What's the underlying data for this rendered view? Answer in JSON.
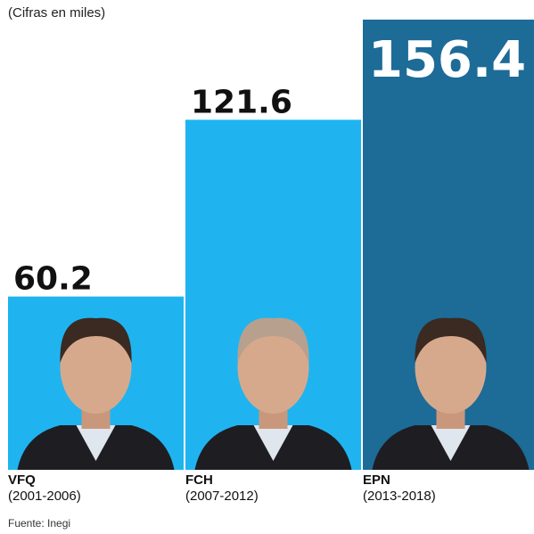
{
  "note": "(Cifras en miles)",
  "source": "Fuente: Inegi",
  "colors": {
    "light_blue": "#1fb4f0",
    "dark_blue": "#1d6b97",
    "value_text_dark": "#111111",
    "value_text_light": "#ffffff"
  },
  "chart_data": {
    "type": "bar",
    "categories": [
      "VFQ",
      "FCH",
      "EPN"
    ],
    "periods": [
      "(2001-2006)",
      "(2007-2012)",
      "(2013-2018)"
    ],
    "values": [
      60.2,
      121.6,
      156.4
    ],
    "value_labels": [
      "60.2",
      "121.6",
      "156.4"
    ],
    "bar_colors": [
      "#1fb4f0",
      "#1fb4f0",
      "#1d6b97"
    ],
    "ylim": [
      0,
      156.4
    ],
    "grid": false,
    "legend": false
  }
}
